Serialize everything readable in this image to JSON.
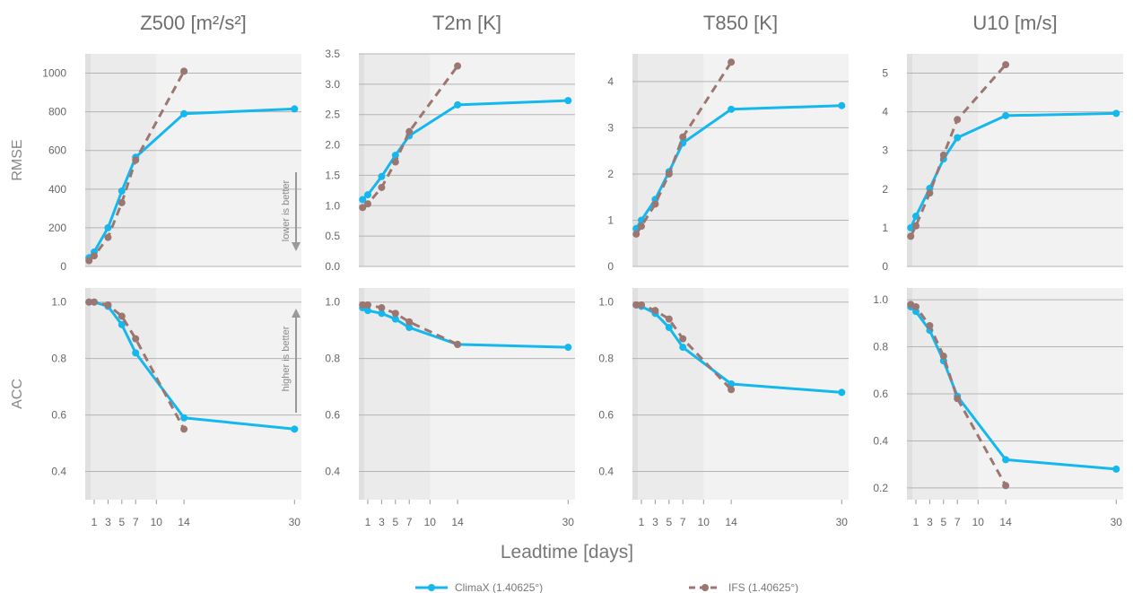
{
  "chart_data": [
    {
      "type": "line",
      "variable": "Z500",
      "row": "RMSE",
      "title": "Z500 [m²/s²]",
      "ylabel": "RMSE",
      "ylim": [
        0,
        1100
      ],
      "yticks": [
        0,
        200,
        400,
        600,
        800,
        1000
      ],
      "ytick_labels": [
        "0",
        "200",
        "400",
        "600",
        "800",
        "1000"
      ],
      "series": [
        {
          "name": "ClimaX (1.40625°)",
          "x": [
            0.25,
            1,
            3,
            5,
            7,
            14,
            30
          ],
          "y": [
            45,
            75,
            200,
            390,
            565,
            790,
            815
          ]
        },
        {
          "name": "IFS (1.40625°)",
          "x": [
            0.25,
            1,
            3,
            5,
            7,
            14
          ],
          "y": [
            30,
            55,
            150,
            330,
            550,
            1010
          ]
        }
      ]
    },
    {
      "type": "line",
      "variable": "T2m",
      "row": "RMSE",
      "title": "T2m [K]",
      "ylabel": "",
      "ylim": [
        0,
        3.5
      ],
      "yticks": [
        0,
        0.5,
        1,
        1.5,
        2,
        2.5,
        3,
        3.5
      ],
      "ytick_labels": [
        "0.0",
        "0.5",
        "1.0",
        "1.5",
        "2.0",
        "2.5",
        "3.0",
        "3.5"
      ],
      "series": [
        {
          "name": "ClimaX (1.40625°)",
          "x": [
            0.25,
            1,
            3,
            5,
            7,
            14,
            30
          ],
          "y": [
            1.1,
            1.18,
            1.48,
            1.83,
            2.15,
            2.66,
            2.73
          ]
        },
        {
          "name": "IFS (1.40625°)",
          "x": [
            0.25,
            1,
            3,
            5,
            7,
            14
          ],
          "y": [
            0.97,
            1.03,
            1.3,
            1.72,
            2.22,
            3.3
          ]
        }
      ]
    },
    {
      "type": "line",
      "variable": "T850",
      "row": "RMSE",
      "title": "T850 [K]",
      "ylabel": "",
      "ylim": [
        0,
        4.6
      ],
      "yticks": [
        0,
        1,
        2,
        3,
        4
      ],
      "ytick_labels": [
        "0",
        "1",
        "2",
        "3",
        "4"
      ],
      "series": [
        {
          "name": "ClimaX (1.40625°)",
          "x": [
            0.25,
            1,
            3,
            5,
            7,
            14,
            30
          ],
          "y": [
            0.82,
            1.0,
            1.45,
            2.05,
            2.67,
            3.4,
            3.48
          ]
        },
        {
          "name": "IFS (1.40625°)",
          "x": [
            0.25,
            1,
            3,
            5,
            7,
            14
          ],
          "y": [
            0.7,
            0.87,
            1.35,
            2.0,
            2.8,
            4.42
          ]
        }
      ]
    },
    {
      "type": "line",
      "variable": "U10",
      "row": "RMSE",
      "title": "U10 [m/s]",
      "ylabel": "",
      "ylim": [
        0,
        5.5
      ],
      "yticks": [
        0,
        1,
        2,
        3,
        4,
        5
      ],
      "ytick_labels": [
        "0",
        "1",
        "2",
        "3",
        "4",
        "5"
      ],
      "series": [
        {
          "name": "ClimaX (1.40625°)",
          "x": [
            0.25,
            1,
            3,
            5,
            7,
            14,
            30
          ],
          "y": [
            1.0,
            1.3,
            2.02,
            2.78,
            3.33,
            3.9,
            3.96
          ]
        },
        {
          "name": "IFS (1.40625°)",
          "x": [
            0.25,
            1,
            3,
            5,
            7,
            14
          ],
          "y": [
            0.78,
            1.05,
            1.9,
            2.88,
            3.8,
            5.22
          ]
        }
      ]
    },
    {
      "type": "line",
      "variable": "Z500",
      "row": "ACC",
      "title": "",
      "ylabel": "ACC",
      "ylim": [
        0.3,
        1.05
      ],
      "yticks": [
        0.4,
        0.6,
        0.8,
        1.0
      ],
      "ytick_labels": [
        "0.4",
        "0.6",
        "0.8",
        "1.0"
      ],
      "series": [
        {
          "name": "ClimaX (1.40625°)",
          "x": [
            0.25,
            1,
            3,
            5,
            7,
            14,
            30
          ],
          "y": [
            1.0,
            1.0,
            0.985,
            0.92,
            0.82,
            0.59,
            0.55
          ]
        },
        {
          "name": "IFS (1.40625°)",
          "x": [
            0.25,
            1,
            3,
            5,
            7,
            14
          ],
          "y": [
            1.0,
            1.0,
            0.99,
            0.95,
            0.87,
            0.55
          ]
        }
      ]
    },
    {
      "type": "line",
      "variable": "T2m",
      "row": "ACC",
      "title": "",
      "ylabel": "",
      "ylim": [
        0.3,
        1.05
      ],
      "yticks": [
        0.4,
        0.6,
        0.8,
        1.0
      ],
      "ytick_labels": [
        "0.4",
        "0.6",
        "0.8",
        "1.0"
      ],
      "series": [
        {
          "name": "ClimaX (1.40625°)",
          "x": [
            0.25,
            1,
            3,
            5,
            7,
            14,
            30
          ],
          "y": [
            0.98,
            0.97,
            0.96,
            0.94,
            0.91,
            0.85,
            0.84
          ]
        },
        {
          "name": "IFS (1.40625°)",
          "x": [
            0.25,
            1,
            3,
            5,
            7,
            14
          ],
          "y": [
            0.99,
            0.99,
            0.98,
            0.96,
            0.93,
            0.85
          ]
        }
      ]
    },
    {
      "type": "line",
      "variable": "T850",
      "row": "ACC",
      "title": "",
      "ylabel": "",
      "ylim": [
        0.3,
        1.05
      ],
      "yticks": [
        0.4,
        0.6,
        0.8,
        1.0
      ],
      "ytick_labels": [
        "0.4",
        "0.6",
        "0.8",
        "1.0"
      ],
      "series": [
        {
          "name": "ClimaX (1.40625°)",
          "x": [
            0.25,
            1,
            3,
            5,
            7,
            14,
            30
          ],
          "y": [
            0.99,
            0.985,
            0.96,
            0.91,
            0.84,
            0.71,
            0.68
          ]
        },
        {
          "name": "IFS (1.40625°)",
          "x": [
            0.25,
            1,
            3,
            5,
            7,
            14
          ],
          "y": [
            0.99,
            0.99,
            0.97,
            0.94,
            0.87,
            0.69
          ]
        }
      ]
    },
    {
      "type": "line",
      "variable": "U10",
      "row": "ACC",
      "title": "",
      "ylabel": "",
      "ylim": [
        0.15,
        1.05
      ],
      "yticks": [
        0.2,
        0.4,
        0.6,
        0.8,
        1.0
      ],
      "ytick_labels": [
        "0.2",
        "0.4",
        "0.6",
        "0.8",
        "1.0"
      ],
      "series": [
        {
          "name": "ClimaX (1.40625°)",
          "x": [
            0.25,
            1,
            3,
            5,
            7,
            14,
            30
          ],
          "y": [
            0.97,
            0.95,
            0.87,
            0.74,
            0.59,
            0.32,
            0.28
          ]
        },
        {
          "name": "IFS (1.40625°)",
          "x": [
            0.25,
            1,
            3,
            5,
            7,
            14
          ],
          "y": [
            0.98,
            0.97,
            0.89,
            0.76,
            0.58,
            0.21
          ]
        }
      ]
    }
  ],
  "xaxis": {
    "label": "Leadtime [days]",
    "xlim": [
      -0.3,
      31
    ],
    "ticks": [
      1,
      3,
      5,
      7,
      10,
      14,
      30
    ],
    "tick_labels": [
      "1",
      "3",
      "5",
      "7",
      "10",
      "14",
      "30"
    ]
  },
  "shaded_spans": [
    {
      "from": -0.3,
      "to": 0.5,
      "color": "#e0e0e0"
    },
    {
      "from": 0.5,
      "to": 10,
      "color": "#ebebeb"
    }
  ],
  "background": "#f2f2f2",
  "annotations": {
    "lower": "lower is better",
    "higher": "higher is better"
  },
  "colors": {
    "climax": "#14b8ee",
    "ifs": "#9c7670"
  },
  "legend": {
    "placement": "bottom-center",
    "items": [
      "ClimaX (1.40625°)",
      "IFS (1.40625°)"
    ]
  }
}
